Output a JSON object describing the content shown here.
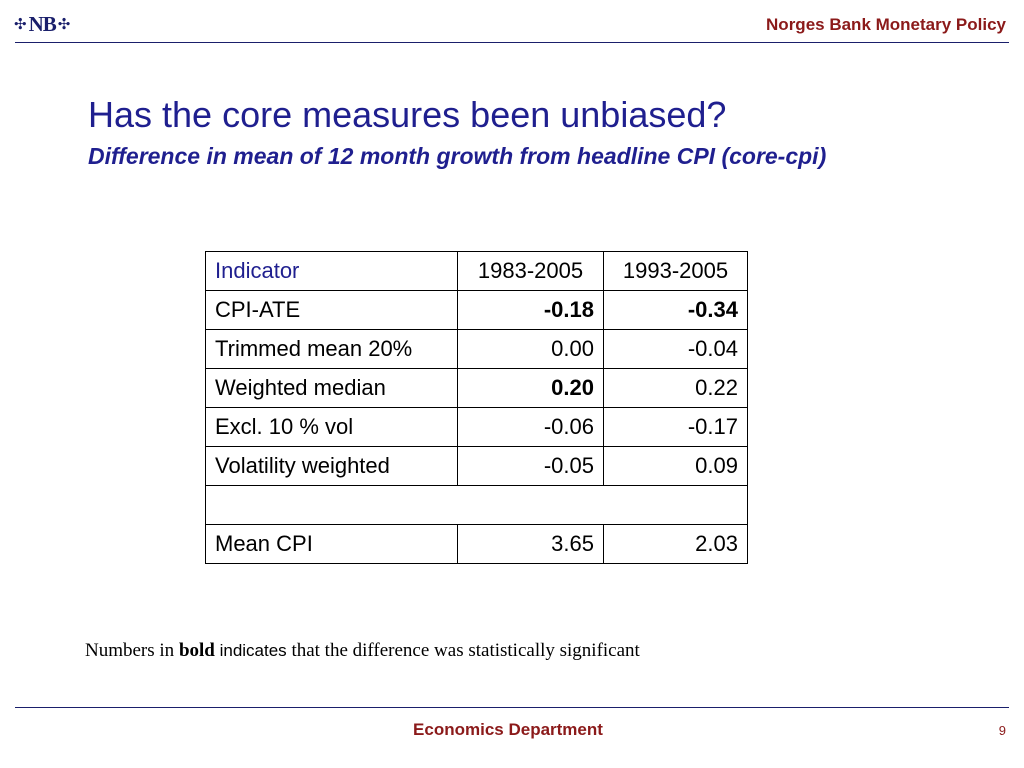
{
  "header": {
    "logo_text": "NB",
    "title": "Norges Bank Monetary Policy"
  },
  "slide": {
    "title": "Has the core measures been unbiased?",
    "subtitle": "Difference in mean of 12 month growth from headline CPI (core-cpi)"
  },
  "table": {
    "headers": [
      "Indicator",
      "1983-2005",
      "1993-2005"
    ],
    "rows": [
      {
        "indicator": "CPI-ATE",
        "v1": "-0.18",
        "v1_bold": true,
        "v2": "-0.34",
        "v2_bold": true
      },
      {
        "indicator": "Trimmed mean 20%",
        "v1": "0.00",
        "v1_bold": false,
        "v2": "-0.04",
        "v2_bold": false
      },
      {
        "indicator": "Weighted median",
        "v1": "0.20",
        "v1_bold": true,
        "v2": "0.22",
        "v2_bold": false
      },
      {
        "indicator": "Excl. 10 % vol",
        "v1": "-0.06",
        "v1_bold": false,
        "v2": "-0.17",
        "v2_bold": false
      },
      {
        "indicator": "Volatility weighted",
        "v1": "-0.05",
        "v1_bold": false,
        "v2": "0.09",
        "v2_bold": false
      },
      {
        "indicator": "Mean CPI",
        "v1": "3.65",
        "v1_bold": false,
        "v2": "2.03",
        "v2_bold": false
      }
    ]
  },
  "note": {
    "prefix": "Numbers in ",
    "bold_word": "bold",
    "middle": " indicates",
    "suffix": " that the difference was statistically significant"
  },
  "footer": {
    "department": "Economics Department",
    "page_number": "9"
  },
  "colors": {
    "navy": "#1f1f8f",
    "maroon": "#8b1a1a"
  }
}
